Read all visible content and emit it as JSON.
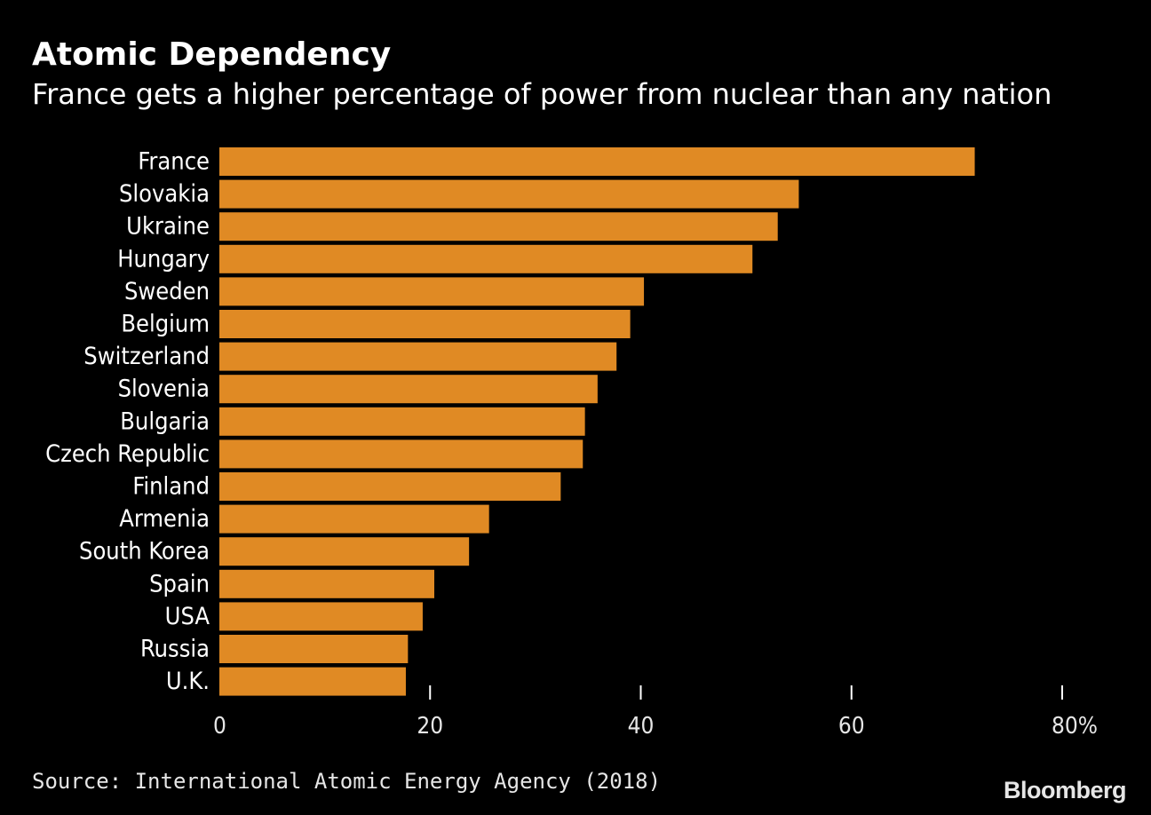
{
  "header": {
    "title": "Atomic Dependency",
    "subtitle": "France gets a higher percentage of power from nuclear than any nation"
  },
  "footer": {
    "source": "Source: International Atomic Energy Agency (2018)",
    "brand": "Bloomberg"
  },
  "colors": {
    "background": "#000000",
    "bar": "#e08a24",
    "text": "#ffffff",
    "tick_text": "#e6e6e6",
    "tick_mark": "#ffffff"
  },
  "chart_data": {
    "type": "bar",
    "orientation": "horizontal",
    "title": "Atomic Dependency",
    "subtitle": "France gets a higher percentage of power from nuclear than any nation",
    "categories": [
      "France",
      "Slovakia",
      "Ukraine",
      "Hungary",
      "Sweden",
      "Belgium",
      "Switzerland",
      "Slovenia",
      "Bulgaria",
      "Czech Republic",
      "Finland",
      "Armenia",
      "South Korea",
      "Spain",
      "USA",
      "Russia",
      "U.K."
    ],
    "values": [
      71.7,
      55.0,
      53.0,
      50.6,
      40.3,
      39.0,
      37.7,
      35.9,
      34.7,
      34.5,
      32.4,
      25.6,
      23.7,
      20.4,
      19.3,
      17.9,
      17.7
    ],
    "xlim": [
      0,
      80
    ],
    "xticks": [
      0,
      20,
      40,
      60,
      80
    ],
    "xtick_labels": [
      "0",
      "20",
      "40",
      "60",
      "80%"
    ],
    "xlabel": "",
    "ylabel": "",
    "grid": false,
    "legend": "none",
    "source": "Source: International Atomic Energy Agency (2018)"
  }
}
